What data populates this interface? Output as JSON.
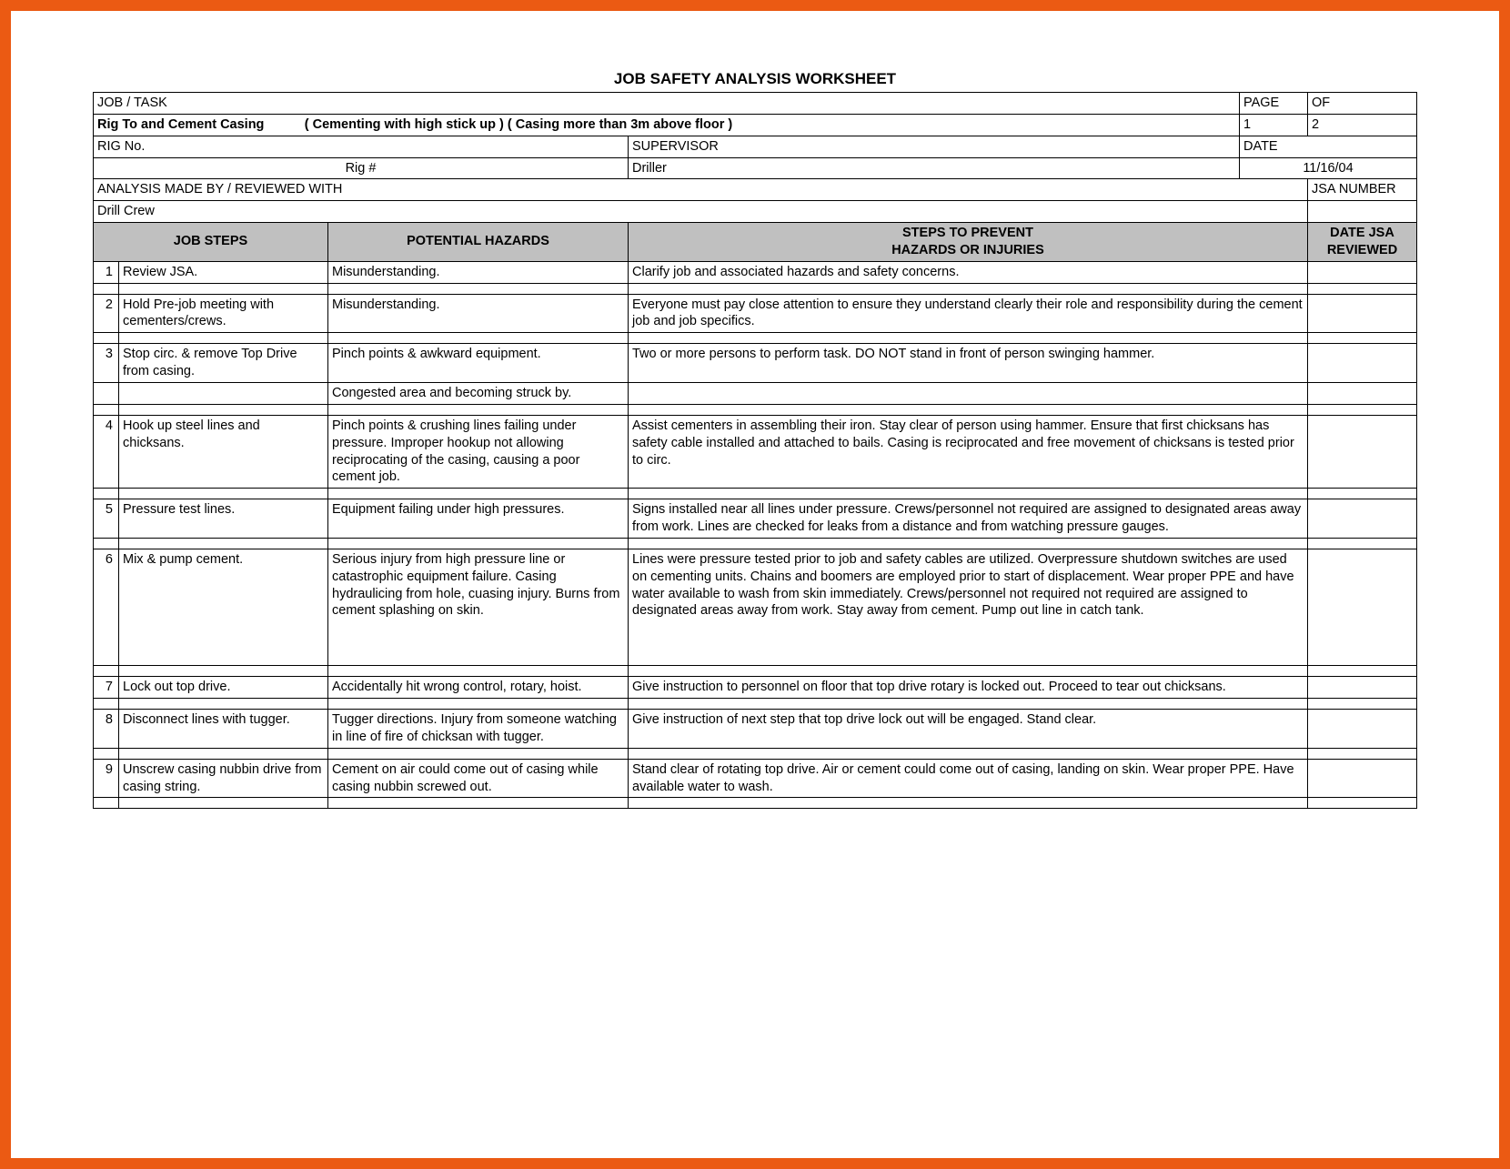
{
  "title": "JOB SAFETY ANALYSIS WORKSHEET",
  "header": {
    "jobTaskLabel": "JOB / TASK",
    "pageLabel": "PAGE",
    "ofLabel": "OF",
    "jobTaskLine1": "Rig To and Cement Casing",
    "jobTaskLine2": "( Cementing with high stick up ) ( Casing more than 3m above floor )",
    "pageNum": "1",
    "ofNum": "2",
    "rigNoLabel": "RIG No.",
    "supervisorLabel": "SUPERVISOR",
    "dateLabel": "DATE",
    "rigNo": "Rig #",
    "supervisor": "Driller",
    "date": "11/16/04",
    "analysisLabel": "ANALYSIS MADE BY / REVIEWED WITH",
    "jsaNumLabel": "JSA NUMBER",
    "analysisBy": "Drill Crew"
  },
  "columns": {
    "steps": "JOB STEPS",
    "hazards": "POTENTIAL HAZARDS",
    "prevent1": "STEPS TO PREVENT",
    "prevent2": "HAZARDS OR INJURIES",
    "dateRev1": "DATE JSA",
    "dateRev2": "REVIEWED"
  },
  "rows": [
    {
      "n": "1",
      "step": "Review JSA.",
      "haz": "Misunderstanding.",
      "prev": "Clarify job and associated hazards and safety concerns."
    },
    {
      "spacer": true
    },
    {
      "n": "2",
      "step": "Hold Pre-job meeting with cementers/crews.",
      "haz": "Misunderstanding.",
      "prev": "Everyone must pay close attention to ensure they understand clearly their role and responsibility during the cement job and job specifics."
    },
    {
      "spacer": true
    },
    {
      "n": "3",
      "step": "Stop circ. & remove Top Drive from casing.",
      "haz": "Pinch points & awkward equipment.",
      "prev": "Two or more persons to perform task. DO NOT stand in front of person swinging hammer."
    },
    {
      "n": "",
      "step": "",
      "haz": "Congested area and becoming struck by.",
      "prev": ""
    },
    {
      "spacer": true
    },
    {
      "n": "4",
      "step": "Hook up steel lines and chicksans.",
      "haz": "Pinch points & crushing lines failing under pressure. Improper hookup not allowing reciprocating of the casing, causing a poor cement job.",
      "prev": "Assist cementers in assembling their iron. Stay clear of person using hammer. Ensure that first chicksans has safety cable installed and attached to bails. Casing is reciprocated and free movement of chicksans is tested prior to circ."
    },
    {
      "spacer": true
    },
    {
      "n": "5",
      "step": "Pressure test lines.",
      "haz": "Equipment failing under high pressures.",
      "prev": "Signs installed near all lines under pressure. Crews/personnel not required are assigned to designated areas away from work. Lines are checked for leaks from a distance and from watching pressure gauges."
    },
    {
      "spacer": true
    },
    {
      "n": "6",
      "step": "Mix & pump cement.",
      "haz": "Serious injury from high pressure line or catastrophic equipment failure.  Casing hydraulicing from hole, cuasing injury. Burns from cement splashing on skin.",
      "prev": "Lines were pressure tested prior to job and safety cables are utilized. Overpressure shutdown switches are used on cementing units. Chains and boomers are employed prior to start of displacement. Wear proper PPE and have water available to wash from skin immediately. Crews/personnel not required not required are assigned to designated areas away from work. Stay away from cement. Pump out line in catch tank.",
      "tall": true
    },
    {
      "spacer": true
    },
    {
      "n": "7",
      "step": "Lock out top drive.",
      "haz": "Accidentally hit wrong control, rotary, hoist.",
      "prev": "Give instruction to personnel on floor that top drive rotary is locked out. Proceed to tear out chicksans."
    },
    {
      "spacer": true
    },
    {
      "n": "8",
      "step": "Disconnect lines with tugger.",
      "haz": "Tugger directions. Injury from someone watching in line of fire of chicksan with tugger.",
      "prev": "Give instruction of next step that top drive lock out will be engaged. Stand clear."
    },
    {
      "spacer": true
    },
    {
      "n": "9",
      "step": "Unscrew casing nubbin drive from casing string.",
      "haz": "Cement on air could come out of casing while casing nubbin screwed out.",
      "prev": "Stand clear of rotating top drive. Air or cement could come out of casing, landing on skin. Wear proper PPE. Have available water to wash."
    },
    {
      "spacer": true
    }
  ]
}
